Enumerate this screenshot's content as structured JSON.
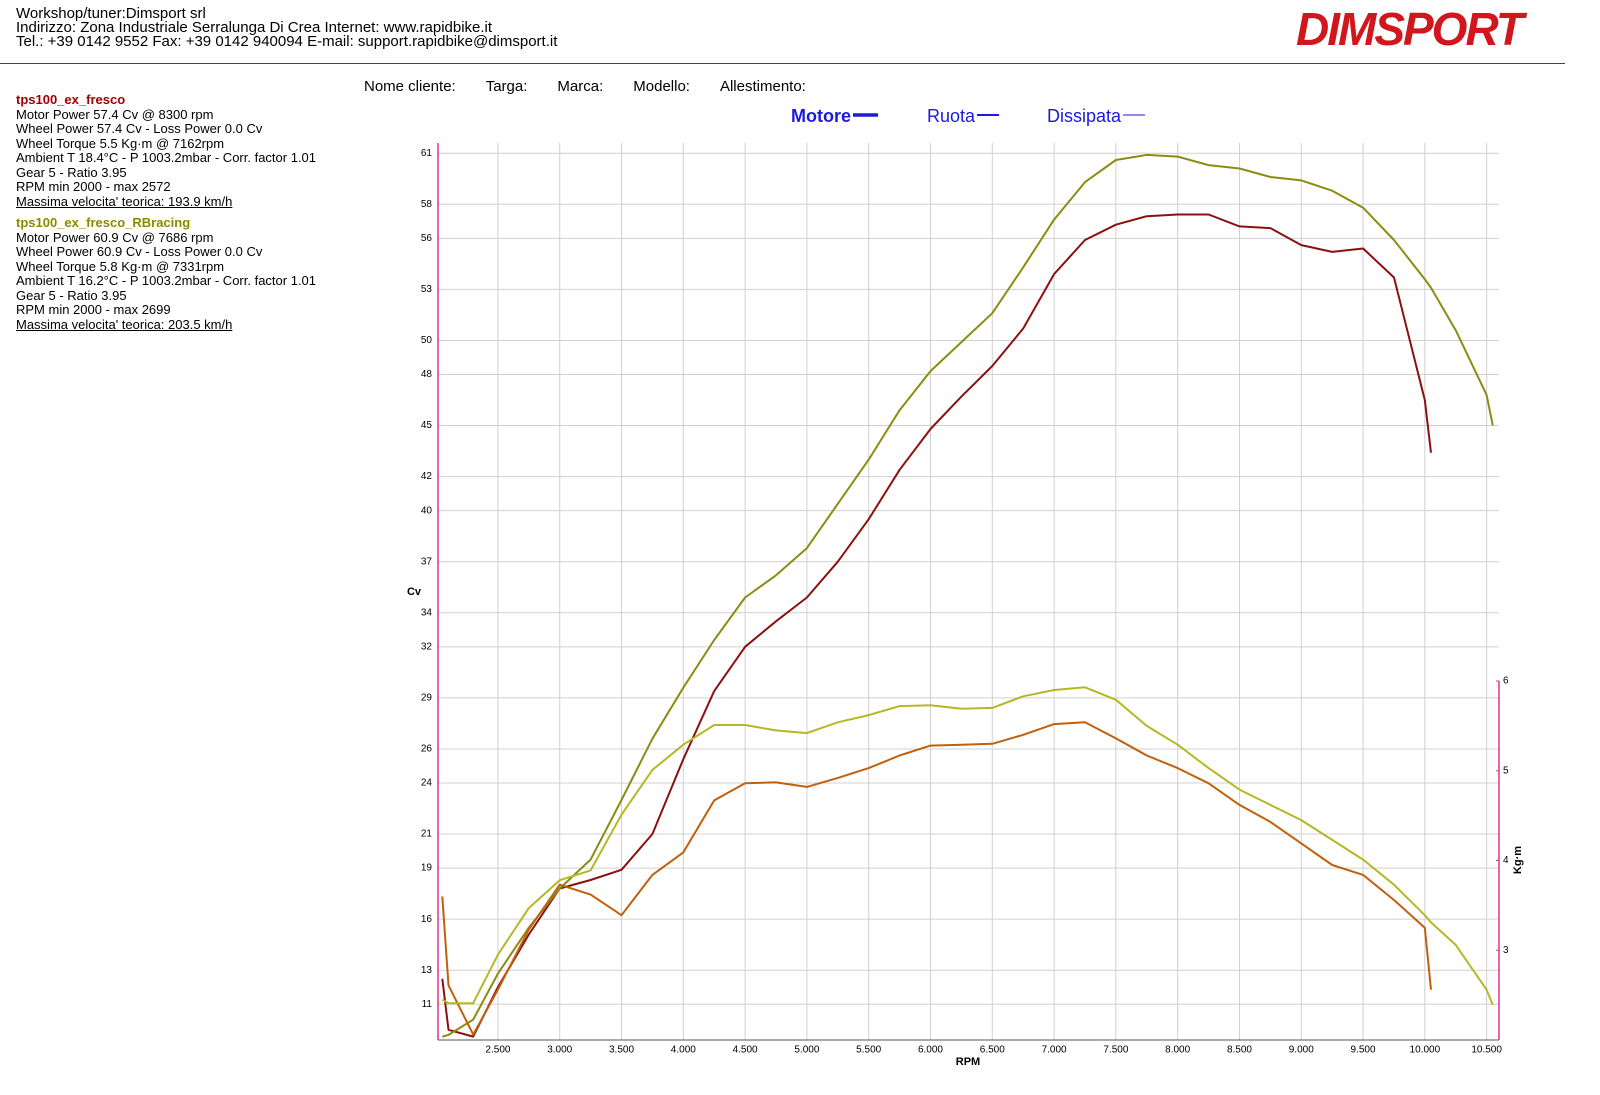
{
  "header": {
    "lines": [
      "Workshop/tuner:Dimsport srl",
      "Indirizzo: Zona Industriale Serralunga Di Crea Internet: www.rapidbike.it",
      "Tel.: +39 0142 9552 Fax: +39 0142 940094 E-mail: support.rapidbike@dimsport.it"
    ],
    "logo": "DIMSPORT"
  },
  "fields": [
    "Nome cliente:",
    "Targa:",
    "Marca:",
    "Modello:",
    "Allestimento:"
  ],
  "runs": [
    {
      "name": "tps100_ex_fresco",
      "color": "#a00000",
      "lines": [
        "Motor Power 57.4 Cv  @ 8300 rpm",
        "Wheel Power 57.4 Cv  - Loss Power 0.0 Cv",
        "Wheel Torque 5.5 Kg·m  @ 7162rpm",
        "Ambient T 18.4°C - P 1003.2mbar - Corr. factor 1.01",
        "Gear 5 - Ratio 3.95",
        "RPM min 2000 - max 2572",
        "Massima velocita' teorica: 193.9 km/h"
      ]
    },
    {
      "name": "tps100_ex_fresco_RBracing",
      "color": "#8a8a00",
      "lines": [
        "Motor Power 60.9 Cv  @ 7686 rpm",
        "Wheel Power 60.9 Cv  - Loss Power 0.0 Cv",
        "Wheel Torque 5.8 Kg·m  @ 7331rpm",
        "Ambient T 16.2°C - P 1003.2mbar - Corr. factor 1.01",
        "Gear 5 - Ratio 3.95",
        "RPM min 2000 - max 2699",
        "Massima velocita' teorica: 203.5 km/h"
      ]
    }
  ],
  "chart_data": {
    "type": "line",
    "legend_items": [
      "Motore",
      "Ruota",
      "Dissipata"
    ],
    "xlabel": "RPM",
    "ylabel": "Cv",
    "y2label": "Kg·m",
    "x": [
      2050,
      2100,
      2300,
      2500,
      2750,
      3000,
      3250,
      3500,
      3750,
      4000,
      4250,
      4500,
      4750,
      5000,
      5250,
      5500,
      5750,
      6000,
      6250,
      6500,
      6750,
      7000,
      7250,
      7500,
      7750,
      8000,
      8250,
      8500,
      8750,
      9000,
      9250,
      9500,
      9750,
      10000,
      10050,
      10250,
      10500,
      10550
    ],
    "series": [
      {
        "color": "#8b1010",
        "values": [
          12.5,
          9.5,
          9.1,
          12.0,
          15.1,
          17.8,
          18.3,
          18.9,
          21.0,
          25.4,
          29.4,
          32.0,
          33.5,
          34.9,
          37.0,
          39.5,
          42.4,
          44.8,
          46.7,
          48.5,
          50.7,
          53.9,
          55.9,
          56.8,
          57.3,
          57.4,
          57.4,
          56.7,
          56.6,
          55.6,
          55.2,
          55.4,
          53.7,
          46.5,
          43.4,
          null,
          null,
          null
        ]
      },
      {
        "color": "#8c8c12",
        "values": [
          9.1,
          9.2,
          10.1,
          12.8,
          15.5,
          17.8,
          19.5,
          23.0,
          26.6,
          29.6,
          32.4,
          34.9,
          36.2,
          37.8,
          40.4,
          43.0,
          45.9,
          48.2,
          49.9,
          51.6,
          54.3,
          57.1,
          59.3,
          60.6,
          60.9,
          60.8,
          60.3,
          60.1,
          59.6,
          59.4,
          58.8,
          57.8,
          55.9,
          53.6,
          53.1,
          50.6,
          46.8,
          45.0
        ]
      },
      {
        "color": "#c0600c",
        "axis": "y2",
        "values": [
          3.6,
          2.61,
          2.06,
          2.56,
          3.23,
          3.73,
          3.62,
          3.39,
          3.84,
          4.09,
          4.67,
          4.86,
          4.87,
          4.82,
          4.92,
          5.03,
          5.17,
          5.28,
          5.29,
          5.3,
          5.4,
          5.52,
          5.54,
          5.36,
          5.17,
          5.03,
          4.86,
          4.62,
          4.43,
          4.19,
          3.95,
          3.84,
          3.56,
          3.25,
          2.56,
          null,
          null,
          null
        ]
      },
      {
        "color": "#b5b825",
        "axis": "y2",
        "values": [
          2.45,
          2.41,
          2.41,
          2.95,
          3.47,
          3.78,
          3.89,
          4.51,
          5.01,
          5.29,
          5.51,
          5.51,
          5.45,
          5.42,
          5.54,
          5.62,
          5.72,
          5.73,
          5.69,
          5.7,
          5.83,
          5.9,
          5.93,
          5.79,
          5.5,
          5.29,
          5.03,
          4.79,
          4.62,
          4.45,
          4.23,
          4.01,
          3.73,
          3.39,
          3.31,
          3.06,
          2.56,
          2.39
        ]
      }
    ],
    "xlim": [
      2015,
      10600
    ],
    "xticks": [
      {
        "value": 2500,
        "label": "2.500"
      },
      {
        "value": 3000,
        "label": "3.000"
      },
      {
        "value": 3500,
        "label": "3.500"
      },
      {
        "value": 4000,
        "label": "4.000"
      },
      {
        "value": 4500,
        "label": "4.500"
      },
      {
        "value": 5000,
        "label": "5.000"
      },
      {
        "value": 5500,
        "label": "5.500"
      },
      {
        "value": 6000,
        "label": "6.000"
      },
      {
        "value": 6500,
        "label": "6.500"
      },
      {
        "value": 7000,
        "label": "7.000"
      },
      {
        "value": 7500,
        "label": "7.500"
      },
      {
        "value": 8000,
        "label": "8.000"
      },
      {
        "value": 8500,
        "label": "8.500"
      },
      {
        "value": 9000,
        "label": "9.000"
      },
      {
        "value": 9500,
        "label": "9.500"
      },
      {
        "value": 10000,
        "label": "10.000"
      },
      {
        "value": 10500,
        "label": "10.500"
      }
    ],
    "ylim": [
      8.9,
      61.6
    ],
    "yticks": [
      11,
      13,
      16,
      19,
      21,
      24,
      26,
      29,
      32,
      34,
      37,
      40,
      42,
      45,
      48,
      50,
      53,
      56,
      58,
      61
    ],
    "y2lim": [
      2,
      6
    ],
    "y2ticks": [
      3,
      4,
      5,
      6
    ],
    "grid": true
  }
}
